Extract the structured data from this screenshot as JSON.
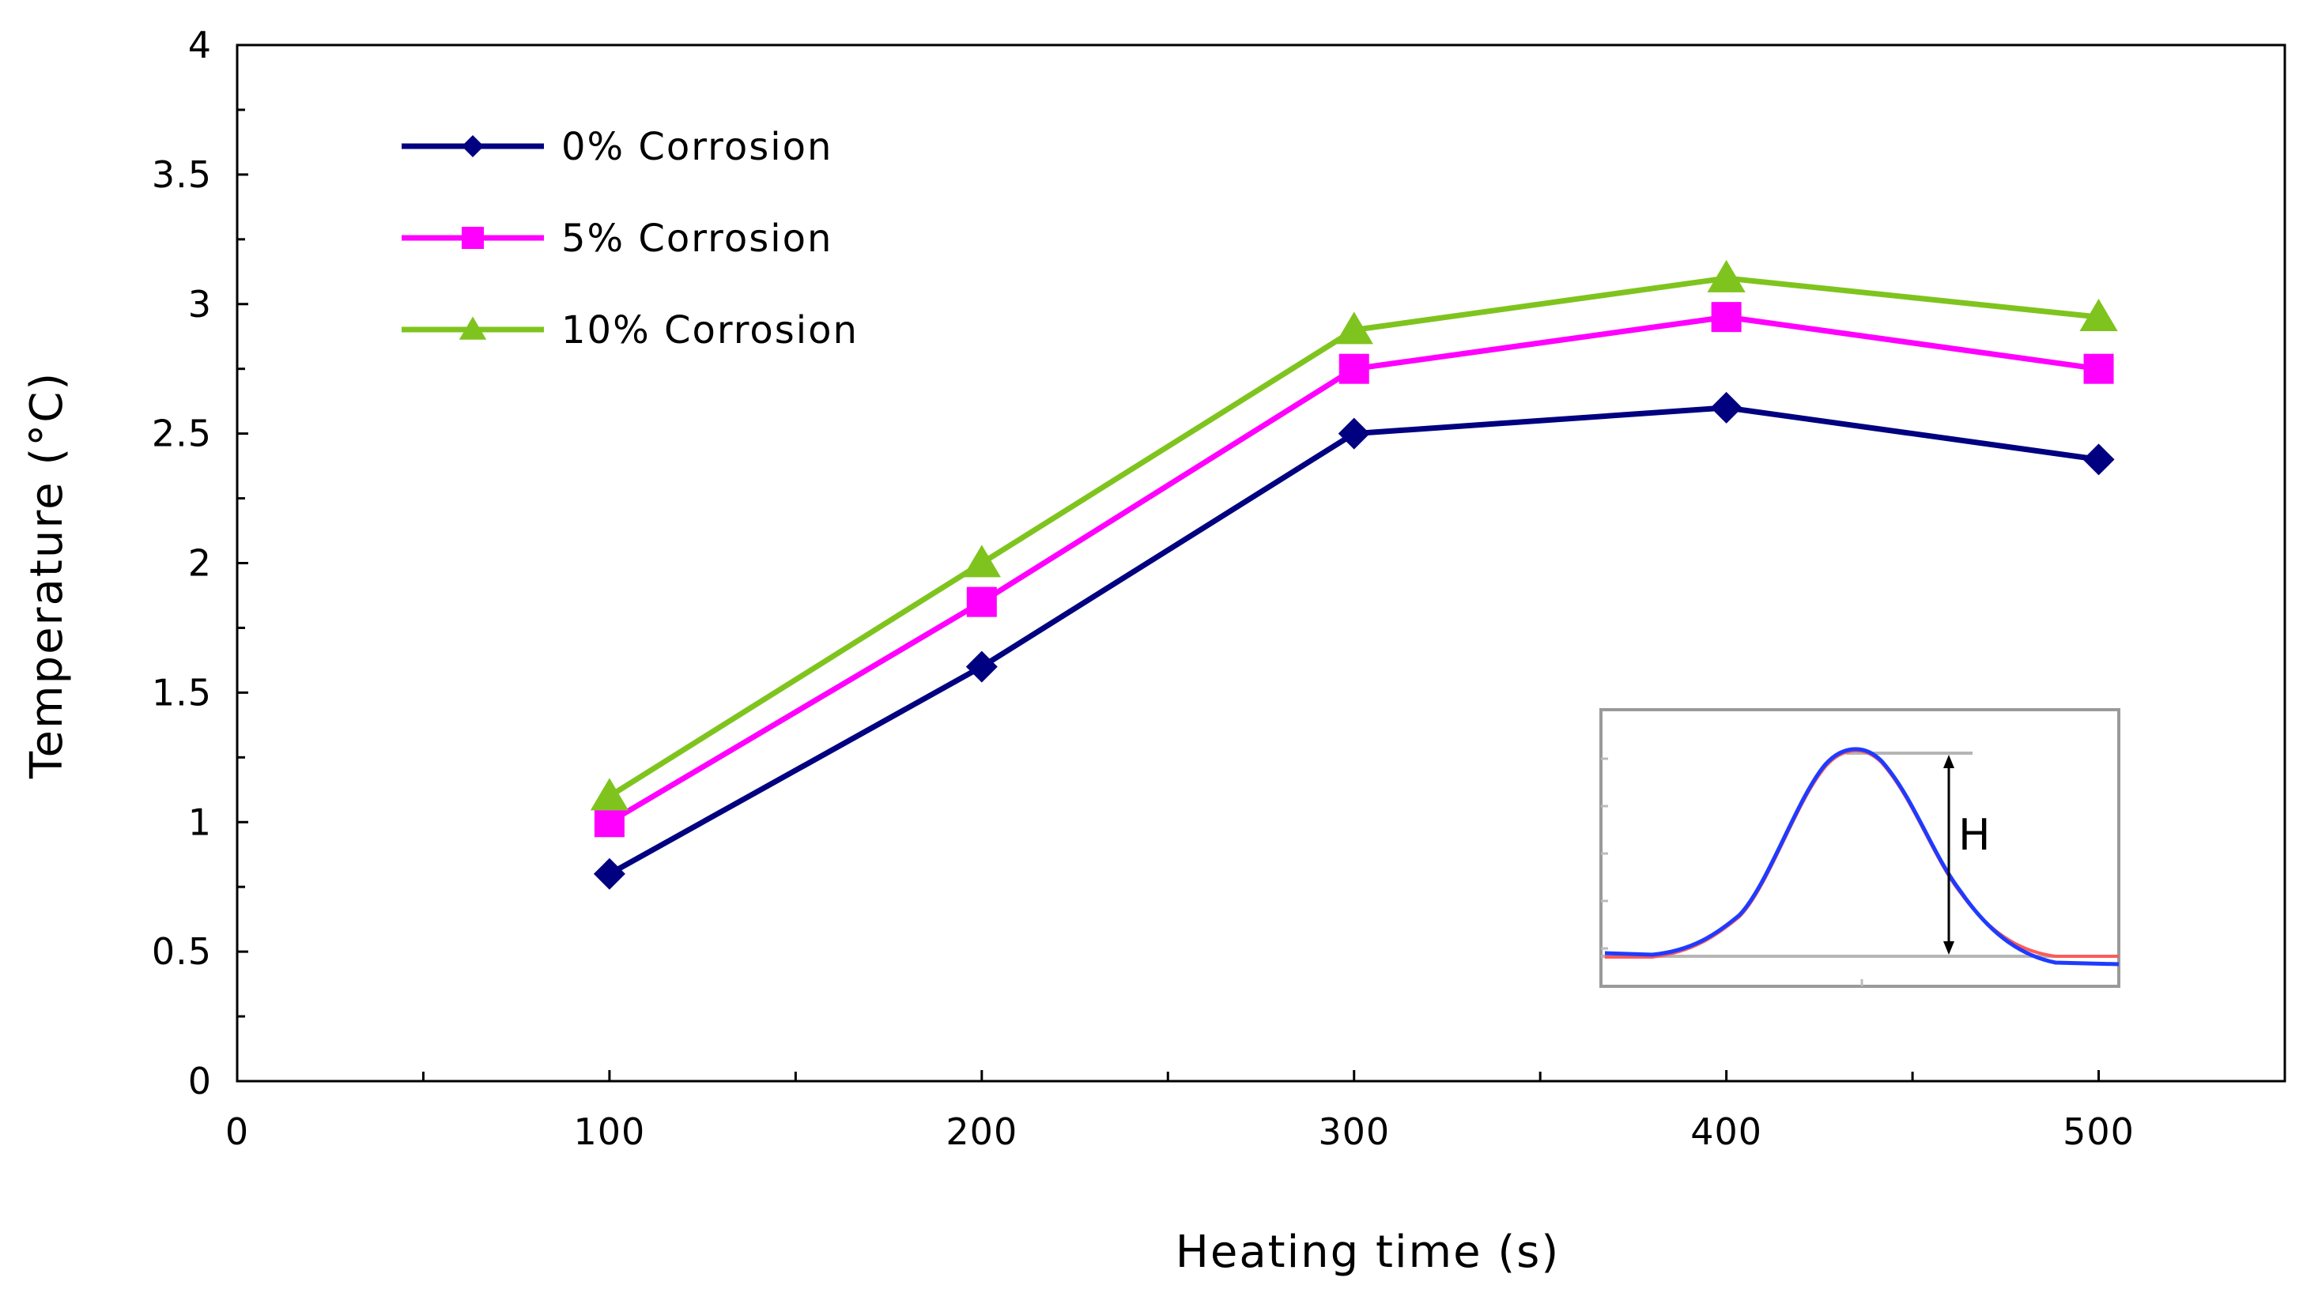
{
  "chart_data": {
    "type": "line",
    "title": "",
    "xlabel": "Heating time (s)",
    "ylabel": "Temperature (°C)",
    "xlim": [
      0,
      550
    ],
    "ylim": [
      0,
      4
    ],
    "x_ticks": [
      "0",
      "100",
      "200",
      "300",
      "400",
      "500"
    ],
    "y_ticks": [
      "0",
      "0.5",
      "1",
      "1.5",
      "2",
      "2.5",
      "3",
      "3.5",
      "4"
    ],
    "x": [
      100,
      200,
      300,
      400,
      500
    ],
    "series": [
      {
        "name": "0% Corrosion",
        "color": "#000080",
        "marker": "diamond",
        "values": [
          0.8,
          1.6,
          2.5,
          2.6,
          2.4
        ]
      },
      {
        "name": "5% Corrosion",
        "color": "#FF00FF",
        "marker": "square",
        "values": [
          1.0,
          1.85,
          2.75,
          2.95,
          2.75
        ]
      },
      {
        "name": "10% Corrosion",
        "color": "#7FC41E",
        "marker": "triangle",
        "values": [
          1.1,
          2.0,
          2.9,
          3.1,
          2.95
        ]
      }
    ],
    "grid": false,
    "legend_position": "top-left",
    "inset": {
      "label": "H"
    }
  }
}
